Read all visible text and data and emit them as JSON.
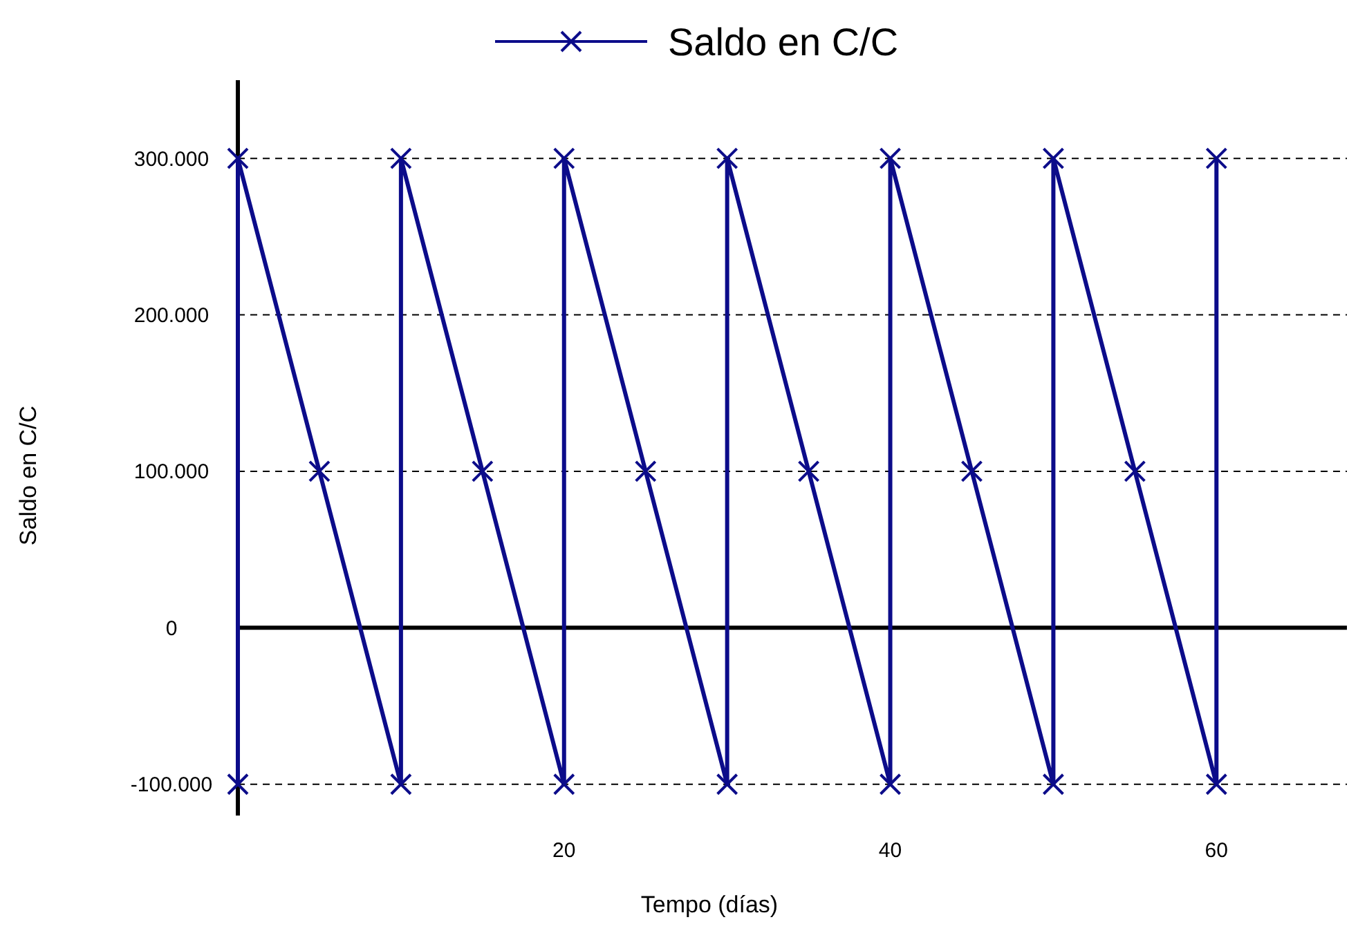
{
  "chart_data": {
    "type": "line",
    "xlabel": "Tempo (días)",
    "ylabel": "Saldo en C/C",
    "x": [
      0,
      0,
      5,
      10,
      10,
      15,
      20,
      20,
      25,
      30,
      30,
      35,
      40,
      40,
      45,
      50,
      50,
      55,
      60,
      60
    ],
    "series": [
      {
        "name": "Saldo en C/C",
        "color": "#0c0c8a",
        "values": [
          -100000,
          300000,
          100000,
          -100000,
          300000,
          100000,
          -100000,
          300000,
          100000,
          -100000,
          300000,
          100000,
          -100000,
          300000,
          100000,
          -100000,
          300000,
          100000,
          -100000,
          300000
        ]
      }
    ],
    "xlim": [
      0,
      68
    ],
    "xticks": [
      20,
      40,
      60
    ],
    "ylim": [
      -120000,
      350000
    ],
    "yticks": [
      {
        "value": -100000,
        "label": "-100.000"
      },
      {
        "value": 0,
        "label": "0"
      },
      {
        "value": 100000,
        "label": "100.000"
      },
      {
        "value": 200000,
        "label": "200.000"
      },
      {
        "value": 300000,
        "label": "300.000"
      }
    ],
    "grid": "y",
    "legend": "top",
    "marker": "cross",
    "line_style": "solid"
  }
}
